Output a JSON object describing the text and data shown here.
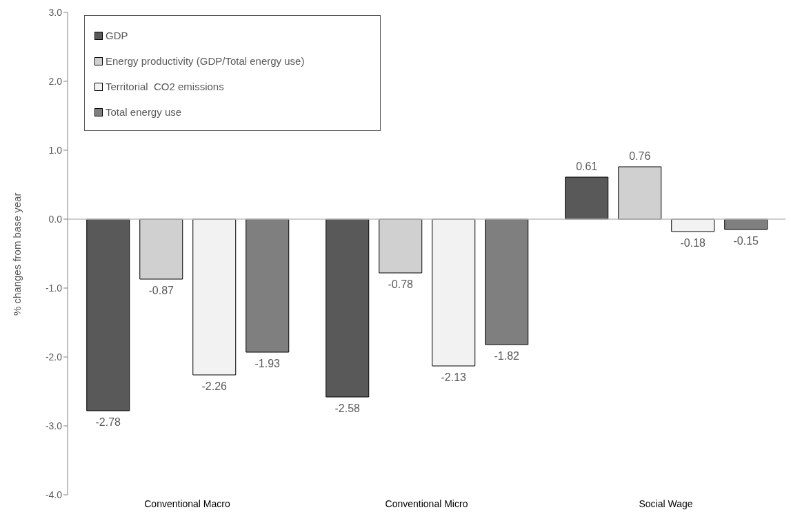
{
  "chart_data": {
    "type": "bar",
    "ylabel": "% changes from base year",
    "categories": [
      "Conventional Macro",
      "Conventional Micro",
      "Social Wage"
    ],
    "series": [
      {
        "name": "GDP",
        "color": "#595959",
        "values": [
          -2.78,
          -2.58,
          0.61
        ]
      },
      {
        "name": "Energy productivity (GDP/Total energy use)",
        "color": "#d0d0d0",
        "values": [
          -0.87,
          -0.78,
          0.76
        ]
      },
      {
        "name": "Territorial  CO2 emissions",
        "color": "#f2f2f2",
        "values": [
          -2.26,
          -2.13,
          -0.18
        ]
      },
      {
        "name": "Total energy use",
        "color": "#7f7f7f",
        "values": [
          -1.93,
          -1.82,
          -0.15
        ]
      }
    ],
    "ylim": [
      -4,
      3
    ],
    "yticks": [
      {
        "value": -4,
        "label": "-4.0"
      },
      {
        "value": -3,
        "label": "-3.0"
      },
      {
        "value": -2,
        "label": "-2.0"
      },
      {
        "value": -1,
        "label": "-1.0"
      },
      {
        "value": 0,
        "label": "0.0"
      },
      {
        "value": 1,
        "label": "1.0"
      },
      {
        "value": 2,
        "label": "2.0"
      },
      {
        "value": 3,
        "label": "3.0"
      }
    ],
    "ref_lines": [
      {
        "axis": "y",
        "value": 0,
        "color": "#bfbfbf"
      }
    ],
    "grid": false,
    "legend": "top left",
    "data_labels": true
  }
}
